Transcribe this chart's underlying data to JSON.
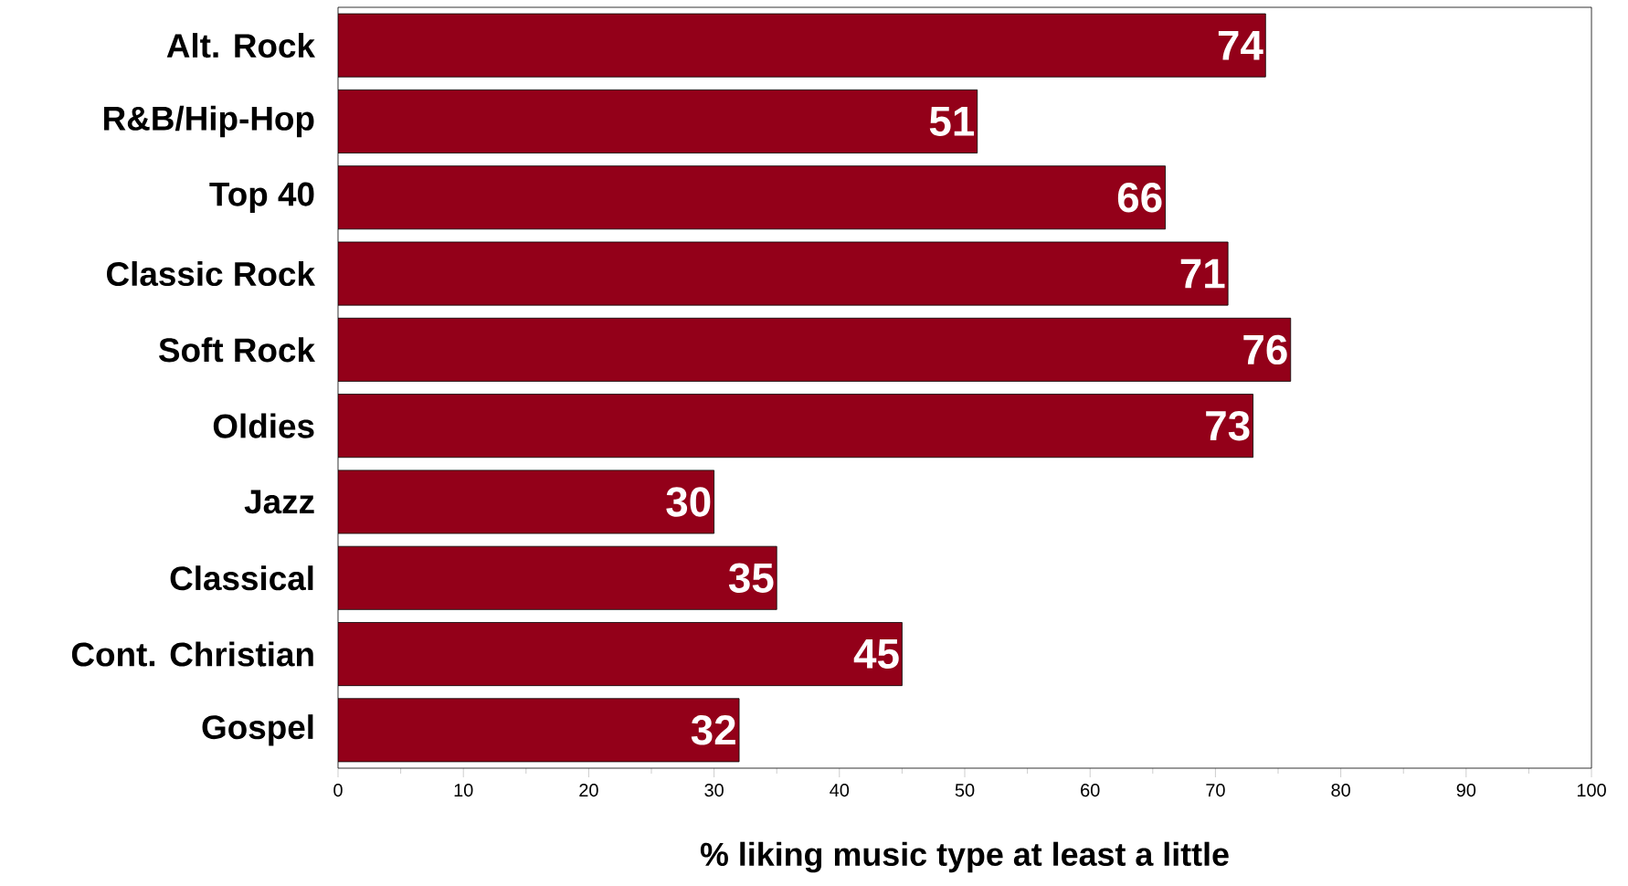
{
  "chart_data": {
    "type": "bar",
    "orientation": "horizontal",
    "xlabel": "% liking music type at least a little",
    "categories": [
      "Alt. Rock",
      "R&B/Hip-Hop",
      "Top 40",
      "Classic Rock",
      "Soft Rock",
      "Oldies",
      "Jazz",
      "Classical",
      "Cont. Christian",
      "Gospel"
    ],
    "values": [
      74,
      51,
      66,
      71,
      76,
      73,
      30,
      35,
      45,
      32
    ],
    "color": "#930019",
    "data_labels": true,
    "xlim": [
      0,
      100
    ],
    "xticks": [
      0,
      10,
      20,
      30,
      40,
      50,
      60,
      70,
      80,
      90,
      100
    ]
  }
}
